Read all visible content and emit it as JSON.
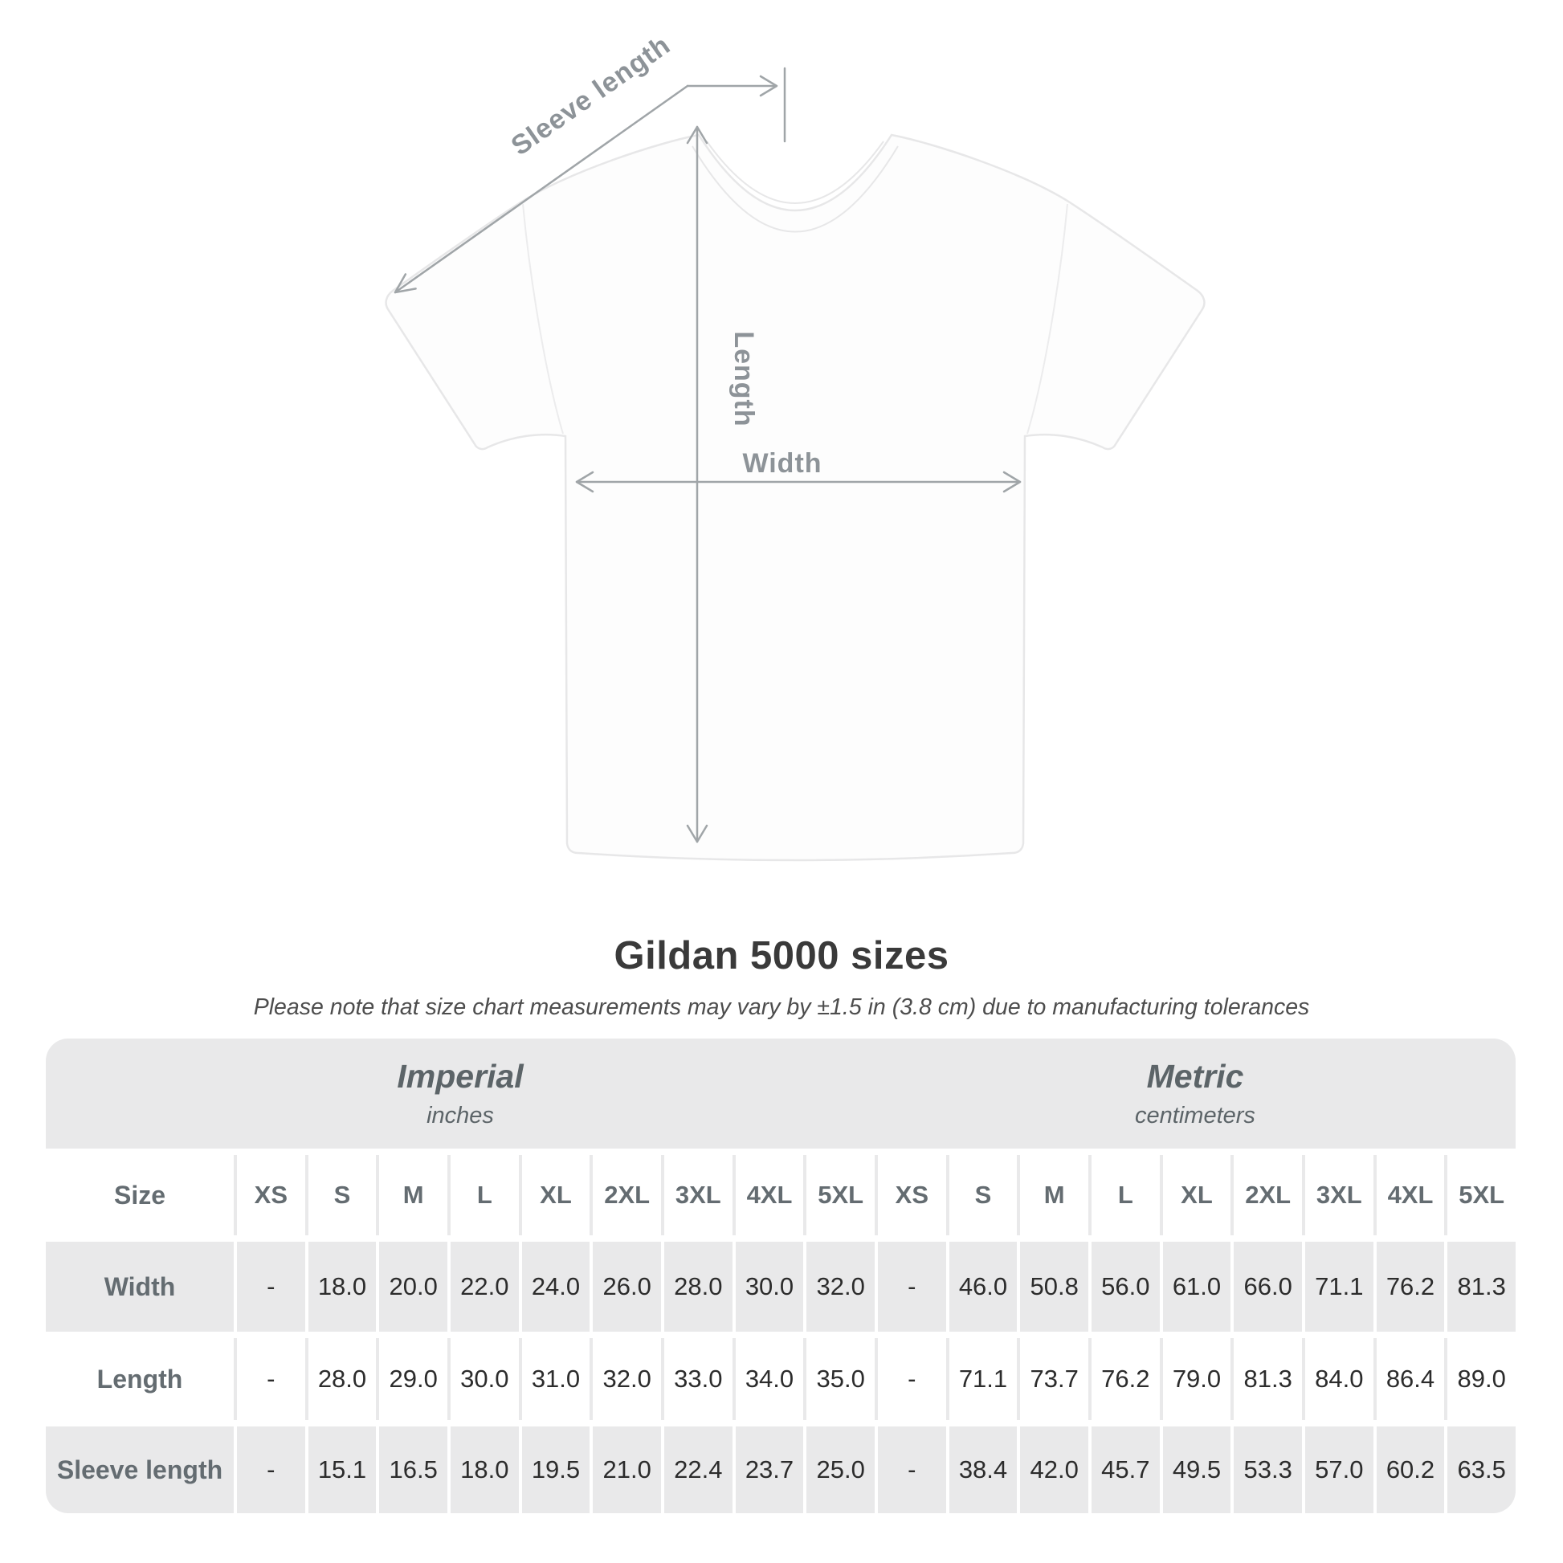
{
  "figure": {
    "sleeve_label": "Sleeve length",
    "length_label": "Length",
    "width_label": "Width"
  },
  "title": "Gildan 5000 sizes",
  "subtitle": "Please note that size chart measurements may vary by ±1.5 in (3.8 cm) due to manufacturing tolerances",
  "table": {
    "groups": [
      {
        "name": "Imperial",
        "unit": "inches"
      },
      {
        "name": "Metric",
        "unit": "centimeters"
      }
    ],
    "size_label": "Size",
    "sizes": [
      "XS",
      "S",
      "M",
      "L",
      "XL",
      "2XL",
      "3XL",
      "4XL",
      "5XL"
    ],
    "rows": [
      {
        "label": "Width",
        "imperial": [
          "-",
          "18.0",
          "20.0",
          "22.0",
          "24.0",
          "26.0",
          "28.0",
          "30.0",
          "32.0"
        ],
        "metric": [
          "-",
          "46.0",
          "50.8",
          "56.0",
          "61.0",
          "66.0",
          "71.1",
          "76.2",
          "81.3"
        ]
      },
      {
        "label": "Length",
        "imperial": [
          "-",
          "28.0",
          "29.0",
          "30.0",
          "31.0",
          "32.0",
          "33.0",
          "34.0",
          "35.0"
        ],
        "metric": [
          "-",
          "71.1",
          "73.7",
          "76.2",
          "79.0",
          "81.3",
          "84.0",
          "86.4",
          "89.0"
        ]
      },
      {
        "label": "Sleeve length",
        "imperial": [
          "-",
          "15.1",
          "16.5",
          "18.0",
          "19.5",
          "21.0",
          "22.4",
          "23.7",
          "25.0"
        ],
        "metric": [
          "-",
          "38.4",
          "42.0",
          "45.7",
          "49.5",
          "53.3",
          "57.0",
          "60.2",
          "63.5"
        ]
      }
    ]
  },
  "chart_data": {
    "type": "table",
    "title": "Gildan 5000 sizes",
    "note": "Please note that size chart measurements may vary by ±1.5 in (3.8 cm) due to manufacturing tolerances",
    "column_groups": [
      "Imperial (inches)",
      "Metric (centimeters)"
    ],
    "columns": [
      "XS",
      "S",
      "M",
      "L",
      "XL",
      "2XL",
      "3XL",
      "4XL",
      "5XL"
    ],
    "rows": [
      {
        "label": "Width",
        "imperial_inches": [
          null,
          18.0,
          20.0,
          22.0,
          24.0,
          26.0,
          28.0,
          30.0,
          32.0
        ],
        "metric_cm": [
          null,
          46.0,
          50.8,
          56.0,
          61.0,
          66.0,
          71.1,
          76.2,
          81.3
        ]
      },
      {
        "label": "Length",
        "imperial_inches": [
          null,
          28.0,
          29.0,
          30.0,
          31.0,
          32.0,
          33.0,
          34.0,
          35.0
        ],
        "metric_cm": [
          null,
          71.1,
          73.7,
          76.2,
          79.0,
          81.3,
          84.0,
          86.4,
          89.0
        ]
      },
      {
        "label": "Sleeve length",
        "imperial_inches": [
          null,
          15.1,
          16.5,
          18.0,
          19.5,
          21.0,
          22.4,
          23.7,
          25.0
        ],
        "metric_cm": [
          null,
          38.4,
          42.0,
          45.7,
          49.5,
          53.3,
          57.0,
          60.2,
          63.5
        ]
      }
    ]
  },
  "colors": {
    "annotation_gray": "#a0a5a8",
    "annotation_text_gray": "#8d9398",
    "table_band_gray": "#e9e9ea",
    "title_color": "#3a3a3a"
  }
}
